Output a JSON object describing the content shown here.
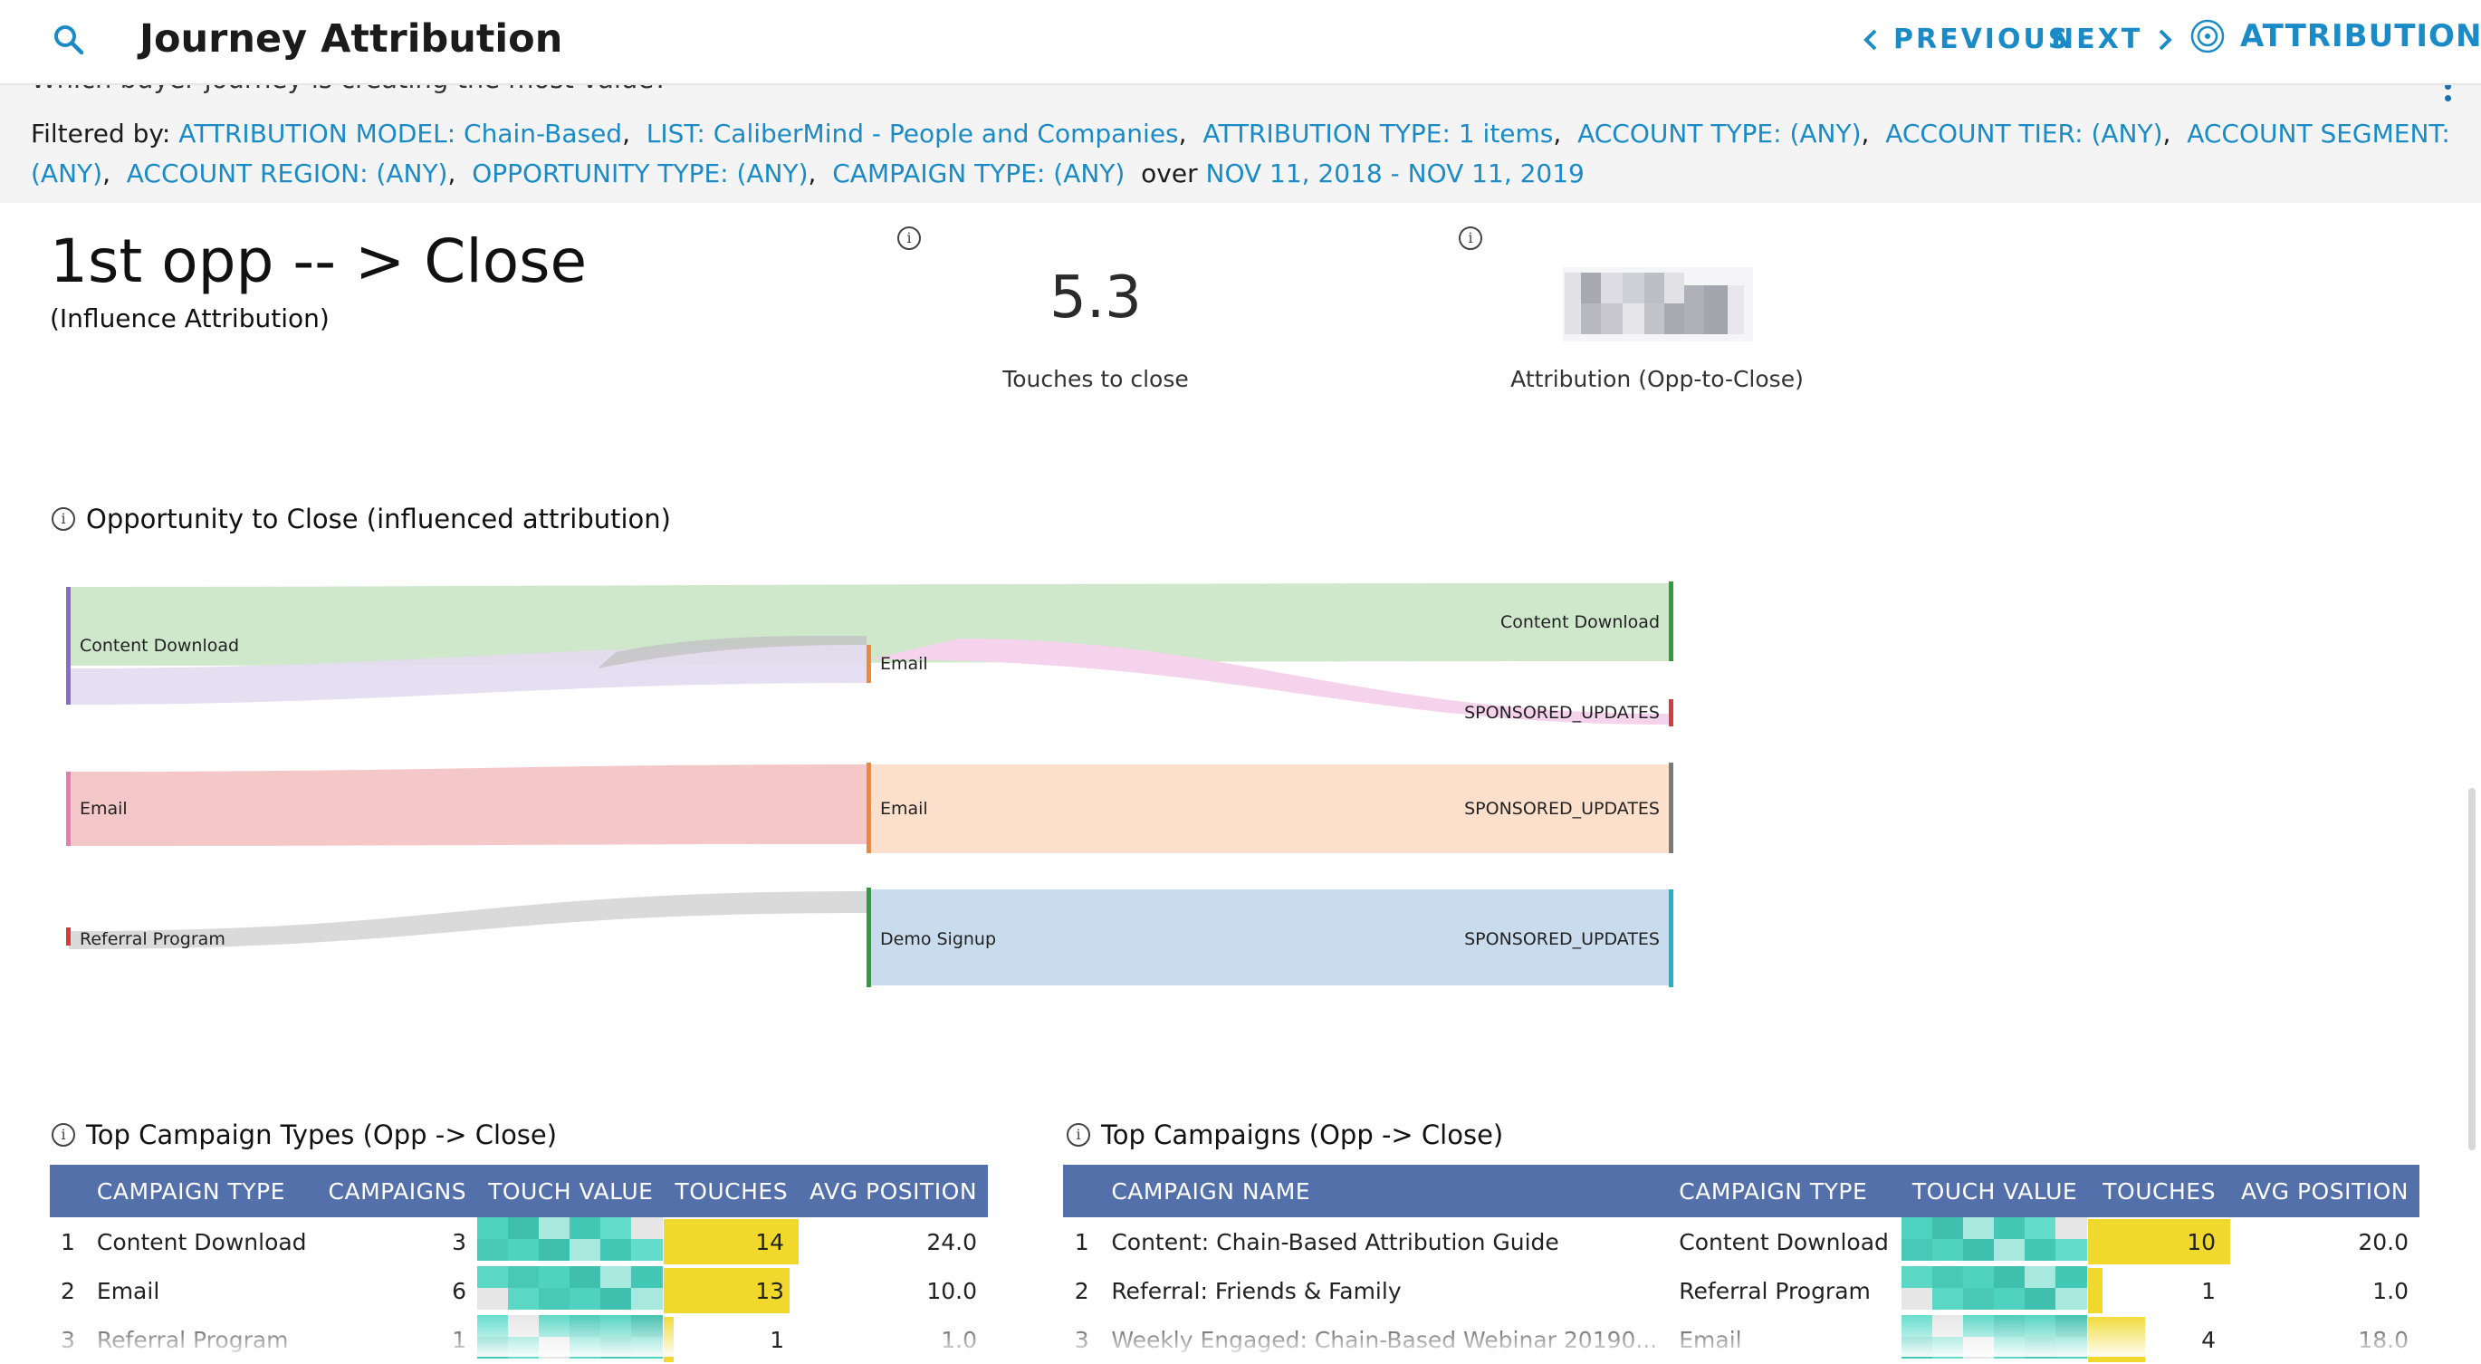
{
  "header": {
    "title": "Journey Attribution",
    "previous_label": "PREVIOUS",
    "next_label": "NEXT",
    "attribution_menu": "ATTRIBUTION",
    "accent": "#1a8bc7"
  },
  "filterbar": {
    "question": "Which buyer journey is creating the most value?",
    "prefix": "Filtered by:",
    "filters": [
      "ATTRIBUTION MODEL: Chain-Based",
      "LIST: CaliberMind - People and Companies",
      "ATTRIBUTION TYPE: 1 items",
      "ACCOUNT TYPE: (ANY)",
      "ACCOUNT TIER: (ANY)",
      "ACCOUNT SEGMENT: (ANY)",
      "ACCOUNT REGION: (ANY)",
      "OPPORTUNITY TYPE: (ANY)",
      "CAMPAIGN TYPE: (ANY)"
    ],
    "over_label": "over",
    "date_range": "NOV 11, 2018 - NOV 11, 2019"
  },
  "summary": {
    "title": "1st opp -- > Close",
    "subtitle": "(Influence Attribution)",
    "touches_value": "5.3",
    "touches_label": "Touches to close",
    "attribution_label": "Attribution (Opp-to-Close)"
  },
  "sankey": {
    "title": "Opportunity to Close (influenced attribution)",
    "col1": [
      "Content Download",
      "Email",
      "Referral Program"
    ],
    "col2": [
      "Email",
      "Email",
      "Demo Signup"
    ],
    "col3": [
      "Content Download",
      "SPONSORED_UPDATES",
      "SPONSORED_UPDATES",
      "SPONSORED_UPDATES"
    ]
  },
  "campaign_types": {
    "title": "Top Campaign Types (Opp -> Close)",
    "headers": [
      "CAMPAIGN TYPE",
      "CAMPAIGNS",
      "TOUCH VALUE",
      "TOUCHES",
      "AVG POSITION"
    ],
    "rows": [
      {
        "idx": "1",
        "type": "Content Download",
        "campaigns": "3",
        "touches": "14",
        "touches_frac": 1.0,
        "avg": "24.0"
      },
      {
        "idx": "2",
        "type": "Email",
        "campaigns": "6",
        "touches": "13",
        "touches_frac": 0.93,
        "avg": "10.0"
      },
      {
        "idx": "3",
        "type": "Referral Program",
        "campaigns": "1",
        "touches": "1",
        "touches_frac": 0.07,
        "avg": "1.0"
      }
    ]
  },
  "campaigns": {
    "title": "Top Campaigns (Opp -> Close)",
    "headers": [
      "CAMPAIGN NAME",
      "CAMPAIGN TYPE",
      "TOUCH VALUE",
      "TOUCHES",
      "AVG POSITION"
    ],
    "rows": [
      {
        "idx": "1",
        "name": "Content: Chain-Based Attribution Guide",
        "type": "Content Download",
        "touches": "10",
        "touches_frac": 1.0,
        "avg": "20.0"
      },
      {
        "idx": "2",
        "name": "Referral: Friends & Family",
        "type": "Referral Program",
        "touches": "1",
        "touches_frac": 0.1,
        "avg": "1.0"
      },
      {
        "idx": "3",
        "name": "Weekly Engaged: Chain-Based Webinar 20190...",
        "type": "Email",
        "touches": "4",
        "touches_frac": 0.4,
        "avg": "18.0"
      }
    ]
  }
}
